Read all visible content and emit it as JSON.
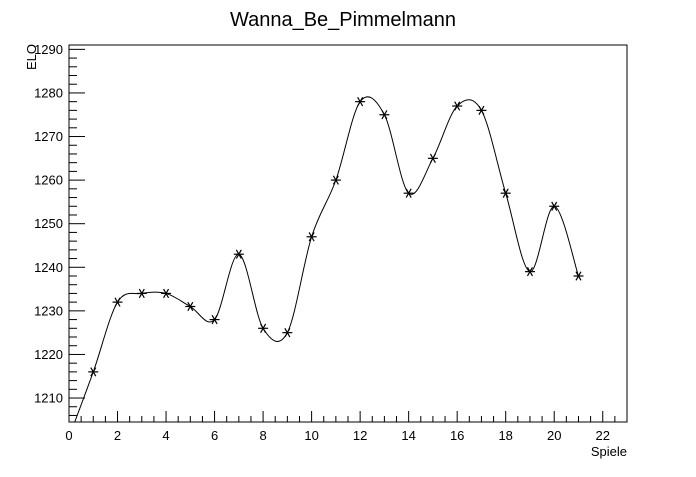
{
  "chart_data": {
    "type": "line",
    "title": "Wanna_Be_Pimmelmann",
    "xlabel": "Spiele",
    "ylabel": "ELO",
    "xlim": [
      0,
      23
    ],
    "ylim": [
      1204.5,
      1291
    ],
    "x_ticks": [
      0,
      2,
      4,
      6,
      8,
      10,
      12,
      14,
      16,
      18,
      20,
      22
    ],
    "y_ticks": [
      1210,
      1220,
      1230,
      1240,
      1250,
      1260,
      1270,
      1280,
      1290
    ],
    "grid": false,
    "marker": "asterisk",
    "line_style": "smooth",
    "line_color": "#000000",
    "series": [
      {
        "x": [
          0,
          1,
          2,
          3,
          4,
          5,
          6,
          7,
          8,
          9,
          10,
          11,
          12,
          13,
          14,
          15,
          16,
          17,
          18,
          19,
          20,
          21
        ],
        "y": [
          1201,
          1216,
          1232,
          1234,
          1234,
          1231,
          1228,
          1243,
          1226,
          1225,
          1247,
          1260,
          1278,
          1275,
          1257,
          1265,
          1277,
          1276,
          1257,
          1239,
          1254,
          1238
        ]
      }
    ]
  }
}
